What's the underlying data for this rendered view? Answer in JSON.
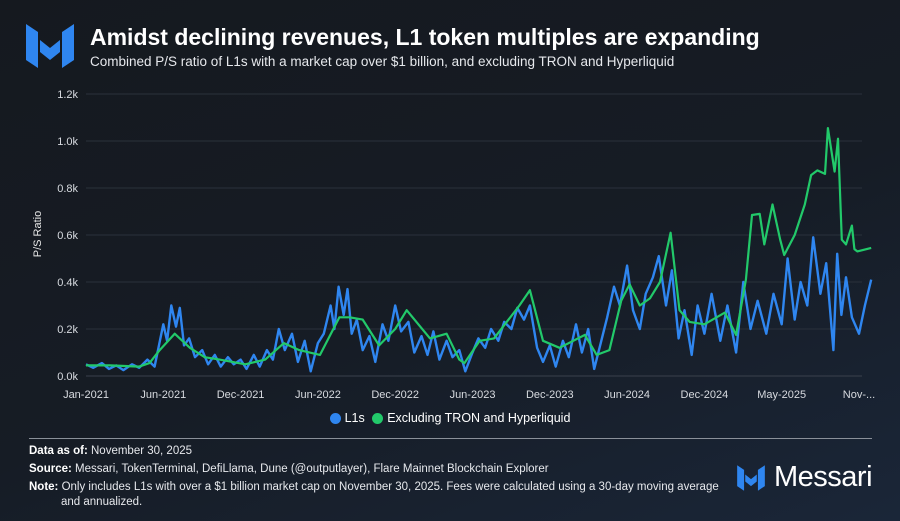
{
  "header": {
    "title": "Amidst declining revenues, L1 token multiples are expanding",
    "subtitle": "Combined P/S ratio of L1s with a market cap over $1 billion, and excluding TRON and Hyperliquid"
  },
  "chart_data": {
    "type": "line",
    "ylabel": "P/S Ratio",
    "xlabel": "",
    "ylim": [
      0,
      1200
    ],
    "y_ticks": [
      {
        "value": 0,
        "label": "0.0k"
      },
      {
        "value": 200,
        "label": "0.2k"
      },
      {
        "value": 400,
        "label": "0.4k"
      },
      {
        "value": 600,
        "label": "0.6k"
      },
      {
        "value": 800,
        "label": "0.8k"
      },
      {
        "value": 1000,
        "label": "1.0k"
      },
      {
        "value": 1200,
        "label": "1.2k"
      }
    ],
    "x_ticks": [
      {
        "date": "2021-01-01",
        "label": "Jan-2021"
      },
      {
        "date": "2021-06-01",
        "label": "Jun-2021"
      },
      {
        "date": "2021-12-01",
        "label": "Dec-2021"
      },
      {
        "date": "2022-06-01",
        "label": "Jun-2022"
      },
      {
        "date": "2022-12-01",
        "label": "Dec-2022"
      },
      {
        "date": "2023-06-01",
        "label": "Jun-2023"
      },
      {
        "date": "2023-12-01",
        "label": "Dec-2023"
      },
      {
        "date": "2024-06-01",
        "label": "Jun-2024"
      },
      {
        "date": "2024-12-01",
        "label": "Dec-2024"
      },
      {
        "date": "2025-05-01",
        "label": "May-2025"
      },
      {
        "date": "2025-11-01",
        "label": "Nov-..."
      }
    ],
    "grid": "horizontal",
    "legend_position": "bottom",
    "series": [
      {
        "name": "L1s",
        "color": "#2f86f0",
        "points": [
          [
            "2021-01-01",
            50
          ],
          [
            "2021-01-15",
            35
          ],
          [
            "2021-02-01",
            55
          ],
          [
            "2021-02-15",
            30
          ],
          [
            "2021-03-01",
            45
          ],
          [
            "2021-03-15",
            25
          ],
          [
            "2021-04-01",
            50
          ],
          [
            "2021-04-15",
            35
          ],
          [
            "2021-05-01",
            70
          ],
          [
            "2021-05-15",
            40
          ],
          [
            "2021-06-01",
            220
          ],
          [
            "2021-06-10",
            150
          ],
          [
            "2021-06-20",
            300
          ],
          [
            "2021-07-01",
            210
          ],
          [
            "2021-07-10",
            290
          ],
          [
            "2021-07-20",
            130
          ],
          [
            "2021-08-01",
            160
          ],
          [
            "2021-08-15",
            80
          ],
          [
            "2021-09-01",
            110
          ],
          [
            "2021-09-15",
            50
          ],
          [
            "2021-10-01",
            90
          ],
          [
            "2021-10-15",
            40
          ],
          [
            "2021-11-01",
            80
          ],
          [
            "2021-11-15",
            50
          ],
          [
            "2021-12-01",
            70
          ],
          [
            "2021-12-15",
            30
          ],
          [
            "2022-01-01",
            90
          ],
          [
            "2022-01-15",
            40
          ],
          [
            "2022-02-01",
            110
          ],
          [
            "2022-02-15",
            70
          ],
          [
            "2022-03-01",
            200
          ],
          [
            "2022-03-15",
            110
          ],
          [
            "2022-04-01",
            180
          ],
          [
            "2022-04-15",
            60
          ],
          [
            "2022-05-01",
            150
          ],
          [
            "2022-05-15",
            20
          ],
          [
            "2022-06-01",
            140
          ],
          [
            "2022-06-15",
            180
          ],
          [
            "2022-07-01",
            300
          ],
          [
            "2022-07-10",
            200
          ],
          [
            "2022-07-20",
            380
          ],
          [
            "2022-08-01",
            260
          ],
          [
            "2022-08-10",
            370
          ],
          [
            "2022-08-20",
            180
          ],
          [
            "2022-09-01",
            240
          ],
          [
            "2022-09-15",
            110
          ],
          [
            "2022-10-01",
            170
          ],
          [
            "2022-10-15",
            60
          ],
          [
            "2022-11-01",
            220
          ],
          [
            "2022-11-15",
            150
          ],
          [
            "2022-12-01",
            300
          ],
          [
            "2022-12-15",
            190
          ],
          [
            "2023-01-01",
            230
          ],
          [
            "2023-01-15",
            100
          ],
          [
            "2023-02-01",
            170
          ],
          [
            "2023-02-15",
            90
          ],
          [
            "2023-03-01",
            190
          ],
          [
            "2023-03-15",
            70
          ],
          [
            "2023-04-01",
            150
          ],
          [
            "2023-04-15",
            80
          ],
          [
            "2023-05-01",
            110
          ],
          [
            "2023-05-15",
            20
          ],
          [
            "2023-06-01",
            100
          ],
          [
            "2023-06-15",
            160
          ],
          [
            "2023-07-01",
            120
          ],
          [
            "2023-07-15",
            200
          ],
          [
            "2023-08-01",
            150
          ],
          [
            "2023-08-15",
            230
          ],
          [
            "2023-09-01",
            200
          ],
          [
            "2023-09-15",
            290
          ],
          [
            "2023-10-01",
            240
          ],
          [
            "2023-10-15",
            300
          ],
          [
            "2023-11-01",
            120
          ],
          [
            "2023-11-15",
            60
          ],
          [
            "2023-12-01",
            130
          ],
          [
            "2023-12-15",
            40
          ],
          [
            "2024-01-01",
            150
          ],
          [
            "2024-01-15",
            80
          ],
          [
            "2024-02-01",
            220
          ],
          [
            "2024-02-15",
            100
          ],
          [
            "2024-03-01",
            200
          ],
          [
            "2024-03-15",
            30
          ],
          [
            "2024-04-01",
            150
          ],
          [
            "2024-04-15",
            250
          ],
          [
            "2024-05-01",
            380
          ],
          [
            "2024-05-15",
            300
          ],
          [
            "2024-06-01",
            470
          ],
          [
            "2024-06-15",
            280
          ],
          [
            "2024-07-01",
            200
          ],
          [
            "2024-07-15",
            350
          ],
          [
            "2024-08-01",
            420
          ],
          [
            "2024-08-15",
            510
          ],
          [
            "2024-09-01",
            300
          ],
          [
            "2024-09-15",
            450
          ],
          [
            "2024-10-01",
            160
          ],
          [
            "2024-10-15",
            280
          ],
          [
            "2024-11-01",
            90
          ],
          [
            "2024-11-15",
            300
          ],
          [
            "2024-12-01",
            180
          ],
          [
            "2024-12-15",
            350
          ],
          [
            "2025-01-01",
            150
          ],
          [
            "2025-01-15",
            300
          ],
          [
            "2025-02-01",
            100
          ],
          [
            "2025-02-15",
            400
          ],
          [
            "2025-03-01",
            200
          ],
          [
            "2025-03-15",
            320
          ],
          [
            "2025-04-01",
            180
          ],
          [
            "2025-04-15",
            350
          ],
          [
            "2025-05-01",
            220
          ],
          [
            "2025-05-15",
            500
          ],
          [
            "2025-06-01",
            240
          ],
          [
            "2025-06-15",
            400
          ],
          [
            "2025-07-01",
            300
          ],
          [
            "2025-07-15",
            590
          ],
          [
            "2025-08-01",
            350
          ],
          [
            "2025-08-15",
            480
          ],
          [
            "2025-09-01",
            110
          ],
          [
            "2025-09-10",
            520
          ],
          [
            "2025-09-20",
            260
          ],
          [
            "2025-10-01",
            420
          ],
          [
            "2025-10-15",
            250
          ],
          [
            "2025-11-01",
            180
          ],
          [
            "2025-11-15",
            300
          ],
          [
            "2025-11-30",
            410
          ]
        ]
      },
      {
        "name": "Excluding TRON and Hyperliquid",
        "color": "#22c96a",
        "points": [
          [
            "2021-01-01",
            45
          ],
          [
            "2021-02-17",
            45
          ],
          [
            "2021-04-15",
            40
          ],
          [
            "2021-05-05",
            55
          ],
          [
            "2021-05-25",
            110
          ],
          [
            "2021-06-28",
            180
          ],
          [
            "2021-08-03",
            120
          ],
          [
            "2021-09-07",
            80
          ],
          [
            "2021-10-12",
            70
          ],
          [
            "2021-12-12",
            50
          ],
          [
            "2022-01-28",
            70
          ],
          [
            "2022-03-13",
            140
          ],
          [
            "2022-04-18",
            110
          ],
          [
            "2022-06-06",
            90
          ],
          [
            "2022-07-22",
            250
          ],
          [
            "2022-08-15",
            250
          ],
          [
            "2022-09-15",
            240
          ],
          [
            "2022-10-24",
            130
          ],
          [
            "2022-12-01",
            200
          ],
          [
            "2022-12-28",
            280
          ],
          [
            "2023-02-21",
            160
          ],
          [
            "2023-04-01",
            180
          ],
          [
            "2023-05-01",
            70
          ],
          [
            "2023-05-13",
            55
          ],
          [
            "2023-06-18",
            150
          ],
          [
            "2023-07-22",
            160
          ],
          [
            "2023-09-20",
            300
          ],
          [
            "2023-10-15",
            365
          ],
          [
            "2023-11-15",
            150
          ],
          [
            "2023-12-24",
            120
          ],
          [
            "2024-02-22",
            175
          ],
          [
            "2024-03-21",
            90
          ],
          [
            "2024-04-20",
            110
          ],
          [
            "2024-05-18",
            320
          ],
          [
            "2024-06-07",
            390
          ],
          [
            "2024-07-01",
            300
          ],
          [
            "2024-07-25",
            330
          ],
          [
            "2024-08-18",
            400
          ],
          [
            "2024-09-12",
            610
          ],
          [
            "2024-10-03",
            280
          ],
          [
            "2024-10-27",
            230
          ],
          [
            "2024-12-01",
            220
          ],
          [
            "2025-01-10",
            270
          ],
          [
            "2025-02-01",
            175
          ],
          [
            "2025-02-20",
            410
          ],
          [
            "2025-03-04",
            685
          ],
          [
            "2025-03-19",
            690
          ],
          [
            "2025-03-28",
            560
          ],
          [
            "2025-04-13",
            730
          ],
          [
            "2025-04-28",
            580
          ],
          [
            "2025-05-07",
            515
          ],
          [
            "2025-06-01",
            600
          ],
          [
            "2025-06-25",
            730
          ],
          [
            "2025-07-10",
            855
          ],
          [
            "2025-07-25",
            875
          ],
          [
            "2025-08-12",
            860
          ],
          [
            "2025-08-19",
            1055
          ],
          [
            "2025-09-04",
            870
          ],
          [
            "2025-09-12",
            1010
          ],
          [
            "2025-09-21",
            580
          ],
          [
            "2025-10-01",
            560
          ],
          [
            "2025-10-15",
            640
          ],
          [
            "2025-10-21",
            540
          ],
          [
            "2025-10-28",
            530
          ],
          [
            "2025-11-30",
            545
          ]
        ]
      }
    ]
  },
  "legend": {
    "items": [
      "L1s",
      "Excluding TRON and Hyperliquid"
    ]
  },
  "footer": {
    "data_as_of_label": "Data as of:",
    "data_as_of_value": "November 30, 2025",
    "source_label": "Source:",
    "source_value": "Messari, TokenTerminal, DefiLlama, Dune (@outputlayer), Flare Mainnet Blockchain Explorer",
    "note_label": "Note:",
    "note_value": "Only includes L1s with over a $1 billion market cap on November 30, 2025. Fees were calculated using a 30-day moving average",
    "note_value_2": "and annualized.",
    "brand": "Messari"
  },
  "colors": {
    "background": "#161c25",
    "accent": "#2f86f0",
    "green": "#22c96a"
  }
}
